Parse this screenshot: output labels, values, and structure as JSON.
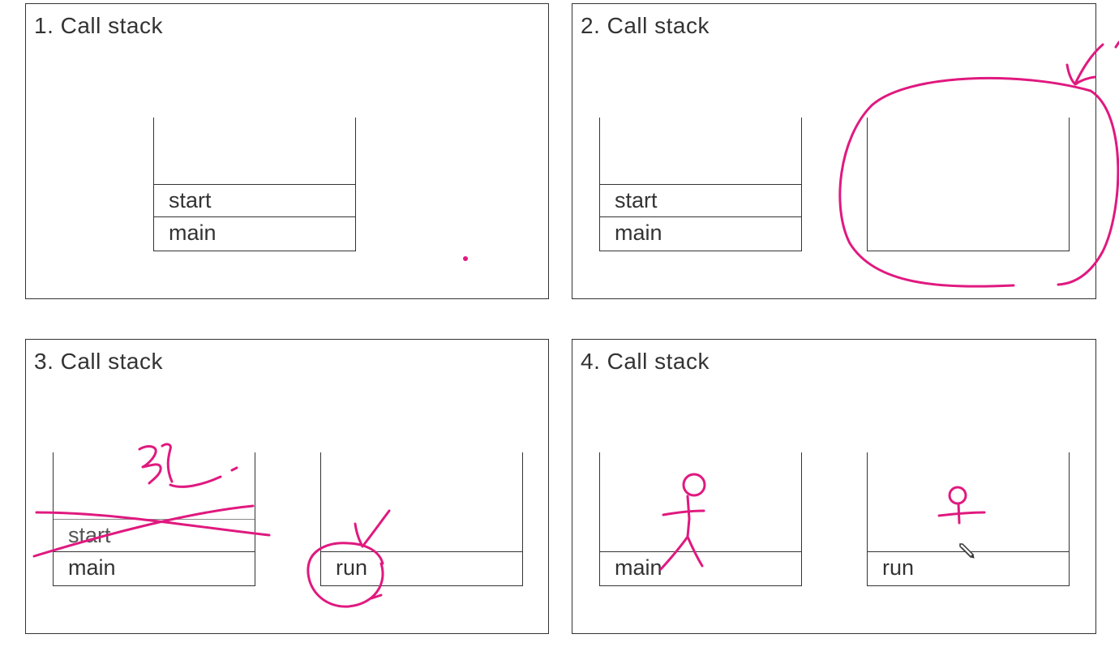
{
  "panels": [
    {
      "title": "1. Call stack",
      "stacks": [
        {
          "frames": [
            "start",
            "main"
          ]
        }
      ]
    },
    {
      "title": "2. Call stack",
      "stacks": [
        {
          "frames": [
            "start",
            "main"
          ]
        },
        {
          "frames": []
        }
      ]
    },
    {
      "title": "3. Call stack",
      "stacks": [
        {
          "frames": [
            "start",
            "main"
          ]
        },
        {
          "frames": [
            "run"
          ]
        }
      ]
    },
    {
      "title": "4. Call stack",
      "stacks": [
        {
          "frames": [
            "main"
          ]
        },
        {
          "frames": [
            "run"
          ]
        }
      ]
    }
  ],
  "annotation_color": "#e0197f",
  "cursor_icon": "pencil-cursor-icon"
}
